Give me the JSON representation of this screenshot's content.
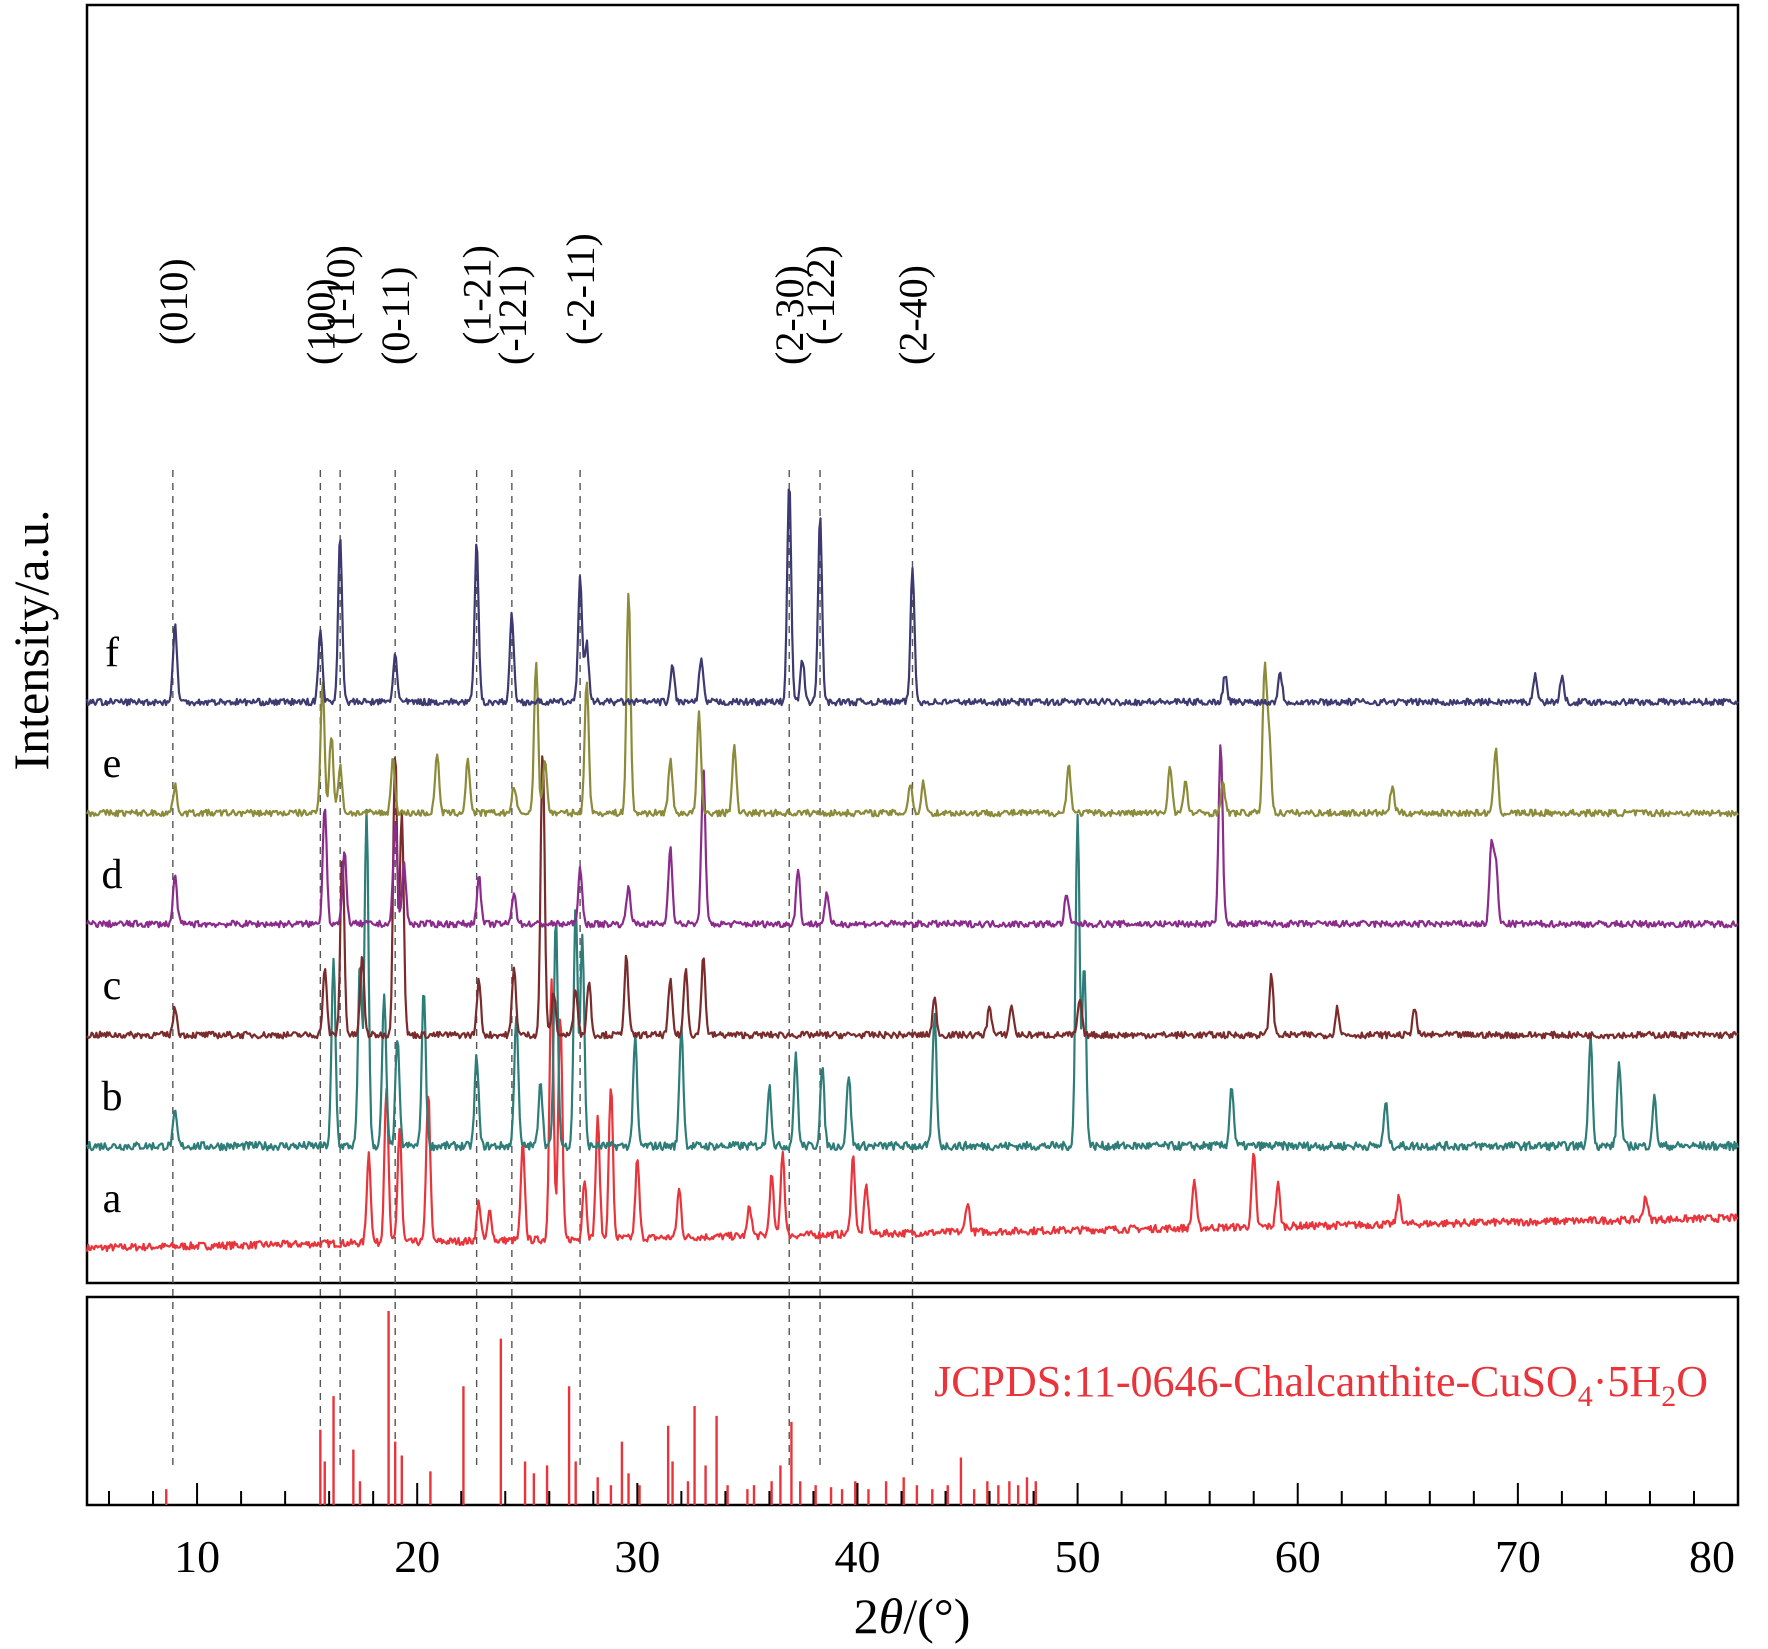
{
  "chart_data": {
    "type": "line",
    "xlabel_prefix": "2",
    "xlabel_theta": "θ",
    "xlabel_suffix": "/(°)",
    "ylabel": "Intensity/a.u.",
    "xlim": [
      5,
      80
    ],
    "xticks": [
      10,
      20,
      30,
      40,
      50,
      60,
      70,
      80
    ],
    "grid": false,
    "series": [
      {
        "name": "a",
        "color": "#e8343a",
        "offset": 0.5,
        "baseline_start": 0.0,
        "baseline_end": 1.0,
        "noise": 0.25,
        "peaks": [
          [
            17.8,
            3.0
          ],
          [
            18.6,
            5.2
          ],
          [
            19.2,
            3.8
          ],
          [
            20.5,
            5.0
          ],
          [
            22.8,
            1.3
          ],
          [
            23.3,
            1.0
          ],
          [
            24.8,
            3.2
          ],
          [
            26.1,
            8.8
          ],
          [
            26.5,
            7.5
          ],
          [
            27.6,
            2.0
          ],
          [
            28.2,
            4.0
          ],
          [
            28.8,
            5.1
          ],
          [
            30.0,
            2.6
          ],
          [
            31.9,
            1.6
          ],
          [
            35.1,
            1.0
          ],
          [
            36.1,
            2.0
          ],
          [
            36.6,
            2.8
          ],
          [
            39.8,
            2.6
          ],
          [
            40.4,
            1.6
          ],
          [
            45.0,
            1.0
          ],
          [
            55.3,
            1.6
          ],
          [
            58.0,
            2.4
          ],
          [
            59.1,
            1.4
          ],
          [
            64.6,
            0.9
          ],
          [
            75.8,
            0.8
          ]
        ]
      },
      {
        "name": "b",
        "color": "#2e7d78",
        "offset": 3.9,
        "baseline_start": 0.0,
        "baseline_end": 0.0,
        "noise": 0.28,
        "peaks": [
          [
            9.0,
            1.1
          ],
          [
            16.2,
            6.2
          ],
          [
            17.4,
            6.0
          ],
          [
            17.7,
            11.2
          ],
          [
            18.5,
            5.0
          ],
          [
            19.1,
            3.6
          ],
          [
            20.3,
            5.2
          ],
          [
            22.7,
            3.0
          ],
          [
            24.5,
            4.4
          ],
          [
            25.6,
            2.2
          ],
          [
            26.3,
            7.5
          ],
          [
            27.2,
            8.0
          ],
          [
            27.5,
            7.0
          ],
          [
            29.9,
            3.6
          ],
          [
            32.0,
            4.0
          ],
          [
            36.0,
            2.0
          ],
          [
            37.2,
            3.0
          ],
          [
            38.4,
            2.6
          ],
          [
            39.6,
            2.4
          ],
          [
            43.5,
            4.4
          ],
          [
            50.0,
            11.0
          ],
          [
            50.3,
            6.0
          ],
          [
            57.0,
            2.0
          ],
          [
            64.0,
            1.4
          ],
          [
            73.3,
            3.6
          ],
          [
            74.6,
            2.8
          ],
          [
            76.2,
            1.6
          ]
        ]
      },
      {
        "name": "c",
        "color": "#7a2b2b",
        "offset": 7.6,
        "baseline_start": 0.0,
        "baseline_end": 0.0,
        "noise": 0.22,
        "peaks": [
          [
            9.0,
            0.9
          ],
          [
            15.8,
            2.2
          ],
          [
            16.6,
            6.0
          ],
          [
            17.5,
            2.6
          ],
          [
            19.0,
            9.5
          ],
          [
            19.3,
            7.5
          ],
          [
            22.8,
            1.8
          ],
          [
            24.4,
            2.2
          ],
          [
            25.7,
            9.5
          ],
          [
            26.2,
            1.4
          ],
          [
            27.2,
            1.6
          ],
          [
            27.8,
            1.8
          ],
          [
            29.5,
            2.6
          ],
          [
            31.5,
            1.8
          ],
          [
            32.2,
            2.2
          ],
          [
            33.0,
            2.6
          ],
          [
            43.5,
            1.2
          ],
          [
            46.0,
            1.0
          ],
          [
            47.0,
            1.0
          ],
          [
            50.1,
            1.2
          ],
          [
            58.8,
            2.0
          ],
          [
            61.8,
            0.9
          ],
          [
            65.3,
            0.9
          ]
        ]
      },
      {
        "name": "d",
        "color": "#8b2c8c",
        "offset": 11.3,
        "baseline_start": 0.0,
        "baseline_end": 0.0,
        "noise": 0.22,
        "peaks": [
          [
            9.0,
            1.6
          ],
          [
            15.8,
            4.0
          ],
          [
            16.7,
            2.4
          ],
          [
            19.0,
            3.4
          ],
          [
            19.4,
            2.0
          ],
          [
            22.8,
            1.6
          ],
          [
            24.4,
            1.1
          ],
          [
            27.4,
            1.8
          ],
          [
            29.6,
            1.3
          ],
          [
            31.5,
            2.6
          ],
          [
            33.0,
            5.2
          ],
          [
            37.3,
            1.8
          ],
          [
            38.6,
            1.0
          ],
          [
            49.5,
            1.0
          ],
          [
            56.5,
            6.0
          ],
          [
            68.8,
            2.6
          ],
          [
            69.0,
            2.0
          ]
        ]
      },
      {
        "name": "e",
        "color": "#8c8b3a",
        "offset": 15.0,
        "baseline_start": 0.0,
        "baseline_end": 0.0,
        "noise": 0.22,
        "peaks": [
          [
            9.0,
            0.9
          ],
          [
            15.7,
            4.4
          ],
          [
            16.1,
            2.6
          ],
          [
            16.5,
            1.6
          ],
          [
            18.9,
            1.8
          ],
          [
            20.9,
            2.0
          ],
          [
            22.3,
            1.8
          ],
          [
            24.4,
            0.9
          ],
          [
            25.4,
            5.0
          ],
          [
            25.8,
            1.8
          ],
          [
            27.7,
            4.5
          ],
          [
            29.6,
            7.4
          ],
          [
            31.5,
            1.8
          ],
          [
            32.8,
            3.3
          ],
          [
            34.4,
            2.2
          ],
          [
            42.4,
            1.0
          ],
          [
            43.0,
            1.0
          ],
          [
            49.6,
            1.6
          ],
          [
            54.2,
            1.6
          ],
          [
            54.9,
            1.0
          ],
          [
            56.6,
            1.0
          ],
          [
            58.5,
            4.8
          ],
          [
            58.7,
            2.6
          ],
          [
            64.3,
            0.9
          ],
          [
            69.0,
            2.2
          ]
        ]
      },
      {
        "name": "f",
        "color": "#3d3a72",
        "offset": 18.7,
        "baseline_start": 0.0,
        "baseline_end": 0.0,
        "noise": 0.22,
        "peaks": [
          [
            9.0,
            2.6
          ],
          [
            15.6,
            2.4
          ],
          [
            16.5,
            5.6
          ],
          [
            19.0,
            1.6
          ],
          [
            22.7,
            5.3
          ],
          [
            24.3,
            2.9
          ],
          [
            27.4,
            4.2
          ],
          [
            27.7,
            2.0
          ],
          [
            31.6,
            1.2
          ],
          [
            32.9,
            1.4
          ],
          [
            36.9,
            7.3
          ],
          [
            37.5,
            1.4
          ],
          [
            38.3,
            6.2
          ],
          [
            42.5,
            4.4
          ],
          [
            56.7,
            0.9
          ],
          [
            59.2,
            1.0
          ],
          [
            70.8,
            0.9
          ],
          [
            72.0,
            0.8
          ]
        ]
      }
    ],
    "reference": {
      "label_prefix": "JCPDS:11-0646-Chalcanthite-CuSO",
      "label_sub1": "4",
      "label_mid": "·5H",
      "label_sub2": "2",
      "label_suffix": "O",
      "color": "#e8343a",
      "lines": [
        [
          8.6,
          0.08
        ],
        [
          15.6,
          0.38
        ],
        [
          15.8,
          0.22
        ],
        [
          16.2,
          0.55
        ],
        [
          17.1,
          0.28
        ],
        [
          17.4,
          0.12
        ],
        [
          18.7,
          0.98
        ],
        [
          19.0,
          0.32
        ],
        [
          19.3,
          0.25
        ],
        [
          20.6,
          0.17
        ],
        [
          22.1,
          0.6
        ],
        [
          23.8,
          0.84
        ],
        [
          24.9,
          0.22
        ],
        [
          25.3,
          0.16
        ],
        [
          25.9,
          0.2
        ],
        [
          26.9,
          0.6
        ],
        [
          27.2,
          0.22
        ],
        [
          28.2,
          0.14
        ],
        [
          28.8,
          0.1
        ],
        [
          29.3,
          0.32
        ],
        [
          29.6,
          0.16
        ],
        [
          30.1,
          0.1
        ],
        [
          31.4,
          0.4
        ],
        [
          31.6,
          0.22
        ],
        [
          32.3,
          0.12
        ],
        [
          32.6,
          0.5
        ],
        [
          33.1,
          0.2
        ],
        [
          33.6,
          0.45
        ],
        [
          34.1,
          0.1
        ],
        [
          35.0,
          0.08
        ],
        [
          35.3,
          0.1
        ],
        [
          36.1,
          0.12
        ],
        [
          36.5,
          0.2
        ],
        [
          37.0,
          0.42
        ],
        [
          37.4,
          0.12
        ],
        [
          38.1,
          0.1
        ],
        [
          38.8,
          0.09
        ],
        [
          39.3,
          0.08
        ],
        [
          39.9,
          0.12
        ],
        [
          40.5,
          0.08
        ],
        [
          41.3,
          0.12
        ],
        [
          42.1,
          0.14
        ],
        [
          42.7,
          0.1
        ],
        [
          43.4,
          0.08
        ],
        [
          44.1,
          0.1
        ],
        [
          44.7,
          0.24
        ],
        [
          45.3,
          0.08
        ],
        [
          45.9,
          0.12
        ],
        [
          46.4,
          0.1
        ],
        [
          46.9,
          0.12
        ],
        [
          47.3,
          0.1
        ],
        [
          47.7,
          0.14
        ],
        [
          48.1,
          0.12
        ]
      ]
    },
    "peak_labels": [
      {
        "text": "(010)",
        "x": 8.9
      },
      {
        "text": "(100)",
        "x": 15.6
      },
      {
        "text": "(1-10)",
        "x": 16.5
      },
      {
        "text": "(0-11)",
        "x": 19.0
      },
      {
        "text": "(1-21)",
        "x": 22.7
      },
      {
        "text": "(-121)",
        "x": 24.3
      },
      {
        "text": "(-2-11)",
        "x": 27.4
      },
      {
        "text": "(2-30)",
        "x": 36.9
      },
      {
        "text": "(-122)",
        "x": 38.3
      },
      {
        "text": "(2-40)",
        "x": 42.5
      }
    ]
  }
}
